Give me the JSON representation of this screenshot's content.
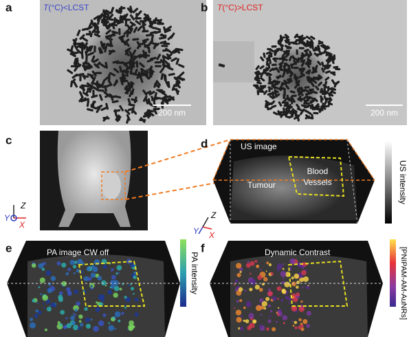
{
  "panels": [
    {
      "label": "a",
      "title_var": "T",
      "title_rest": "(°C)<LCST",
      "scale_bar": "200 nm"
    },
    {
      "label": "b",
      "title_var": "T",
      "title_rest": "(°C)>LCST",
      "scale_bar": "200 nm"
    },
    {
      "label": "c",
      "axes": [
        "Z",
        "Y",
        "X"
      ]
    },
    {
      "label": "d",
      "image_title": "US image",
      "regions": [
        "Tumour",
        "Blood",
        "Vessels"
      ],
      "colorbar_label": "US intensity",
      "axes": [
        "Z",
        "Y",
        "X"
      ]
    },
    {
      "label": "e",
      "image_title": "PA image CW off",
      "colorbar_label": "PA intensity"
    },
    {
      "label": "f",
      "image_title": "Dynamic Contrast",
      "colorbar_label": "[PNIPAM-AM-AuNRs]"
    }
  ]
}
